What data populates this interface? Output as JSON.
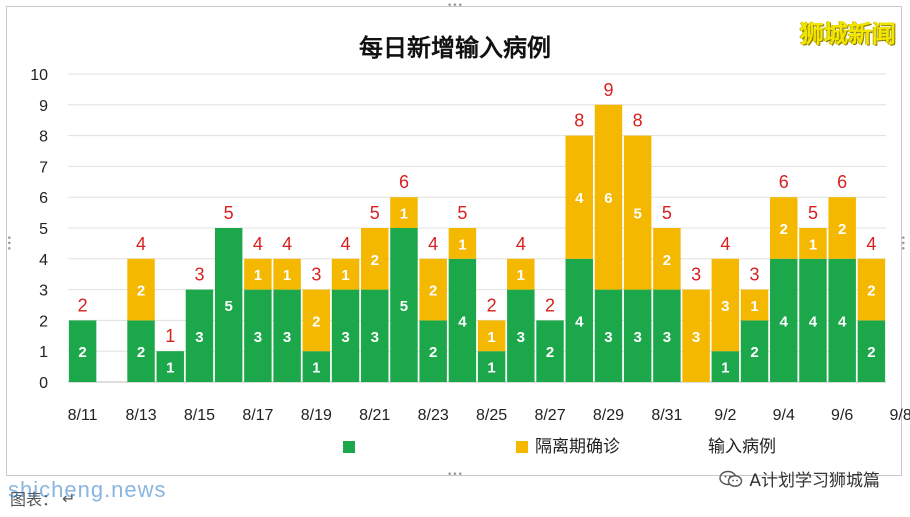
{
  "brand": {
    "logo_text": "狮城新闻"
  },
  "source": {
    "label": "A计划学习狮城篇",
    "icon": "wechat-icon"
  },
  "caption": {
    "label": "图表：",
    "mark": "↵"
  },
  "watermark": {
    "text": "shicheng.news"
  },
  "chart_data": {
    "type": "bar",
    "stacked": true,
    "title": "每日新增输入病例",
    "categories": [
      "8/11",
      "8/12",
      "8/13",
      "8/14",
      "8/15",
      "8/16",
      "8/17",
      "8/18",
      "8/19",
      "8/20",
      "8/21",
      "8/22",
      "8/23",
      "8/24",
      "8/25",
      "8/26",
      "8/27",
      "8/28",
      "8/29",
      "8/30",
      "8/31",
      "9/1",
      "9/2",
      "9/3",
      "9/4",
      "9/5",
      "9/6",
      "9/7"
    ],
    "x_tick_labels": [
      "8/11",
      "8/13",
      "8/15",
      "8/17",
      "8/19",
      "8/21",
      "8/23",
      "8/25",
      "8/27",
      "8/29",
      "8/31",
      "9/2",
      "9/4",
      "9/6",
      "9/8"
    ],
    "series": [
      {
        "name": "",
        "color": "#1ca84a",
        "values": [
          2,
          0,
          2,
          1,
          3,
          5,
          3,
          3,
          1,
          3,
          3,
          5,
          2,
          4,
          1,
          3,
          2,
          4,
          3,
          3,
          3,
          0,
          1,
          2,
          4,
          4,
          4,
          2
        ]
      },
      {
        "name": "隔离期确诊",
        "color": "#f4b800",
        "values": [
          0,
          0,
          2,
          0,
          0,
          0,
          1,
          1,
          2,
          1,
          2,
          1,
          2,
          1,
          1,
          1,
          0,
          4,
          6,
          5,
          2,
          3,
          3,
          1,
          2,
          1,
          2,
          2
        ]
      }
    ],
    "totals": [
      2,
      0,
      4,
      1,
      3,
      5,
      4,
      4,
      3,
      4,
      5,
      6,
      4,
      5,
      2,
      4,
      2,
      8,
      9,
      8,
      5,
      3,
      4,
      3,
      6,
      5,
      6,
      4
    ],
    "totals_series_name": "输入病例",
    "total_label_color": "#d92020",
    "ylim": [
      0,
      10
    ],
    "y_ticks": [
      0,
      1,
      2,
      3,
      4,
      5,
      6,
      7,
      8,
      9,
      10
    ],
    "grid": true,
    "legend": "bottom"
  }
}
